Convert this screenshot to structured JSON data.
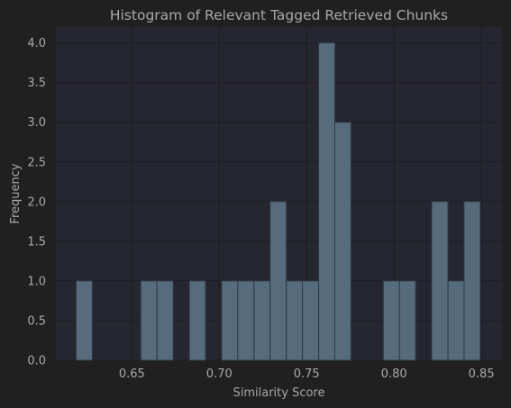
{
  "chart_data": {
    "type": "bar",
    "title": "Histogram of Relevant Tagged Retrieved Chunks",
    "xlabel": "Similarity Score",
    "ylabel": "Frequency",
    "xlim": [
      0.6065,
      0.8618
    ],
    "ylim": [
      0,
      4.2
    ],
    "xticks": [
      "0.65",
      "0.70",
      "0.75",
      "0.80",
      "0.85"
    ],
    "xtick_values": [
      0.65,
      0.7,
      0.75,
      0.8,
      0.85
    ],
    "yticks": [
      "0.0",
      "0.5",
      "1.0",
      "1.5",
      "2.0",
      "2.5",
      "3.0",
      "3.5",
      "4.0"
    ],
    "ytick_values": [
      0,
      0.5,
      1,
      1.5,
      2,
      2.5,
      3,
      3.5,
      4
    ],
    "bin_width": 0.00925,
    "bins": [
      {
        "x0": 0.6181,
        "count": 1
      },
      {
        "x0": 0.6274,
        "count": 0
      },
      {
        "x0": 0.6366,
        "count": 0
      },
      {
        "x0": 0.6459,
        "count": 0
      },
      {
        "x0": 0.6551,
        "count": 1
      },
      {
        "x0": 0.6644,
        "count": 1
      },
      {
        "x0": 0.6736,
        "count": 0
      },
      {
        "x0": 0.6829,
        "count": 1
      },
      {
        "x0": 0.6921,
        "count": 0
      },
      {
        "x0": 0.7014,
        "count": 1
      },
      {
        "x0": 0.7106,
        "count": 1
      },
      {
        "x0": 0.7199,
        "count": 1
      },
      {
        "x0": 0.7291,
        "count": 2
      },
      {
        "x0": 0.7384,
        "count": 1
      },
      {
        "x0": 0.7476,
        "count": 1
      },
      {
        "x0": 0.7569,
        "count": 4
      },
      {
        "x0": 0.7661,
        "count": 3
      },
      {
        "x0": 0.7754,
        "count": 0
      },
      {
        "x0": 0.7846,
        "count": 0
      },
      {
        "x0": 0.7939,
        "count": 1
      },
      {
        "x0": 0.8031,
        "count": 1
      },
      {
        "x0": 0.8124,
        "count": 0
      },
      {
        "x0": 0.8216,
        "count": 2
      },
      {
        "x0": 0.8309,
        "count": 1
      },
      {
        "x0": 0.8401,
        "count": 2
      }
    ],
    "grid": true,
    "colors": {
      "figure_bg": "#202020",
      "plot_bg": "#262630",
      "bar_fill": "#566b7b",
      "bar_edge": "#2f3c46",
      "grid": "#1d1d22",
      "text": "#a8a8a8"
    }
  }
}
